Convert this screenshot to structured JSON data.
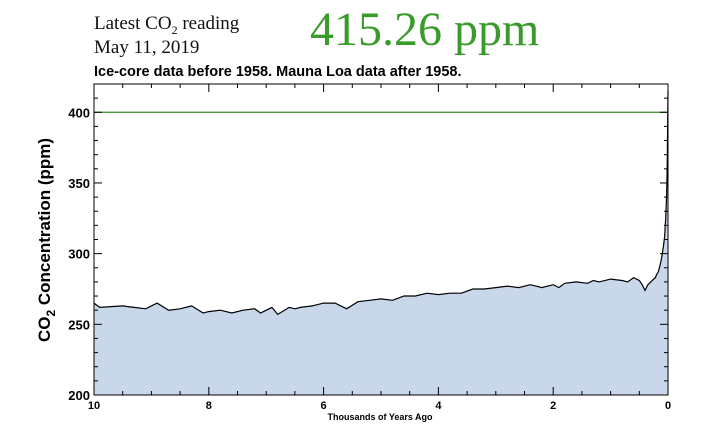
{
  "header": {
    "latest_prefix": "Latest CO",
    "latest_sub": "2",
    "latest_suffix": " reading",
    "date": "May 11, 2019",
    "value": "415.26 ppm",
    "value_color": "#3a9a2c",
    "subtitle": "Ice-core data before 1958. Mauna Loa data after 1958."
  },
  "chart_data": {
    "type": "area",
    "title": "",
    "xlabel": "Thousands of Years Ago",
    "ylabel_prefix": "CO",
    "ylabel_sub": "2",
    "ylabel_suffix": " Concentration (ppm)",
    "xlim": [
      10,
      0
    ],
    "ylim": [
      200,
      420
    ],
    "x_ticks": [
      10,
      8,
      6,
      4,
      2,
      0
    ],
    "y_ticks": [
      200,
      250,
      300,
      350,
      400
    ],
    "reference_line": {
      "y": 400,
      "color": "#3a8a2a"
    },
    "fill_color": "#c8d8ea",
    "line_color": "#000000",
    "grid": false,
    "series": [
      {
        "x": [
          10,
          9.9,
          9.5,
          9.3,
          9.1,
          8.9,
          8.7,
          8.5,
          8.3,
          8.1,
          8.0,
          7.8,
          7.6,
          7.4,
          7.2,
          7.1,
          6.9,
          6.8,
          6.6,
          6.5,
          6.4,
          6.2,
          6.0,
          5.8,
          5.6,
          5.4,
          5.2,
          5.0,
          4.8,
          4.6,
          4.4,
          4.2,
          4.0,
          3.8,
          3.6,
          3.4,
          3.2,
          3.0,
          2.8,
          2.6,
          2.4,
          2.3,
          2.2,
          2.0,
          1.9,
          1.8,
          1.6,
          1.4,
          1.3,
          1.2,
          1.0,
          0.8,
          0.7,
          0.6,
          0.5,
          0.45,
          0.4,
          0.35,
          0.3,
          0.25,
          0.22,
          0.2,
          0.17,
          0.15,
          0.12,
          0.1,
          0.08,
          0.06,
          0.05,
          0.04,
          0.03,
          0.02,
          0.01,
          0.005,
          0
        ],
        "y": [
          265,
          262,
          263,
          262,
          261,
          265,
          260,
          261,
          263,
          258,
          259,
          260,
          258,
          260,
          261,
          258,
          262,
          257,
          262,
          261,
          262,
          263,
          265,
          265,
          261,
          266,
          267,
          268,
          267,
          270,
          270,
          272,
          271,
          272,
          272,
          275,
          275,
          276,
          277,
          276,
          278,
          277,
          276,
          278,
          276,
          279,
          280,
          279,
          281,
          280,
          282,
          281,
          280,
          283,
          281,
          278,
          274,
          278,
          280,
          282,
          283,
          285,
          287,
          290,
          295,
          300,
          305,
          312,
          318,
          325,
          335,
          350,
          372,
          395,
          415
        ]
      }
    ]
  }
}
